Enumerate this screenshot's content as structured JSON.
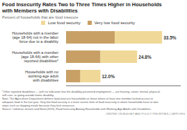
{
  "chart_data": {
    "type": "bar",
    "orientation": "horizontal",
    "stacked": true,
    "title": "Food Insecurity Rates Two to Three Times Higher in Households\nwith Members with Disabilities",
    "subtitle": "Percent of households that are food insecure",
    "categories": [
      "Households with a member\n(age 18-64) not in the labor\nforce due to a disability",
      "Households with a member\n(age 18-64) with other\nreported disabilities*",
      "Households with no\nworking-age adult\nwith disabilities"
    ],
    "series": [
      {
        "name": "Very low food security",
        "color": "#c8a066",
        "values": [
          17.0,
          12.0,
          5.0
        ]
      },
      {
        "name": "Low food security",
        "color": "#f0d898",
        "values": [
          16.5,
          12.8,
          7.0
        ]
      }
    ],
    "totals": [
      33.5,
      24.8,
      12.0
    ],
    "total_labels": [
      "33.5%",
      "24.8%",
      "12.0%"
    ],
    "xlim": [
      0,
      40
    ],
    "tick_labels": "y",
    "grid": false,
    "legend": "top",
    "footer": "*Other reported disabilities — with no indication that the disability prevented employment — are hearing, vision, mental, physical,\nself-care, or going-outside-home disability.\nNote:  The Agriculture Department defines food-insecure households as those where at least one member lacked access to\nadequate food in the last year.  Very low food security is a more severe form of food insecurity in which households have to take\nsteps such as skipping meals because they lack resources.\nSource:  Coleman-Jensen and Nord (2013), Food Insecurity Among Households with Working-Age Adults with Disabilities.",
    "source_line": "CENTER ON BUDGET AND POLICY PRIORITIES | CBPP.ORG"
  }
}
